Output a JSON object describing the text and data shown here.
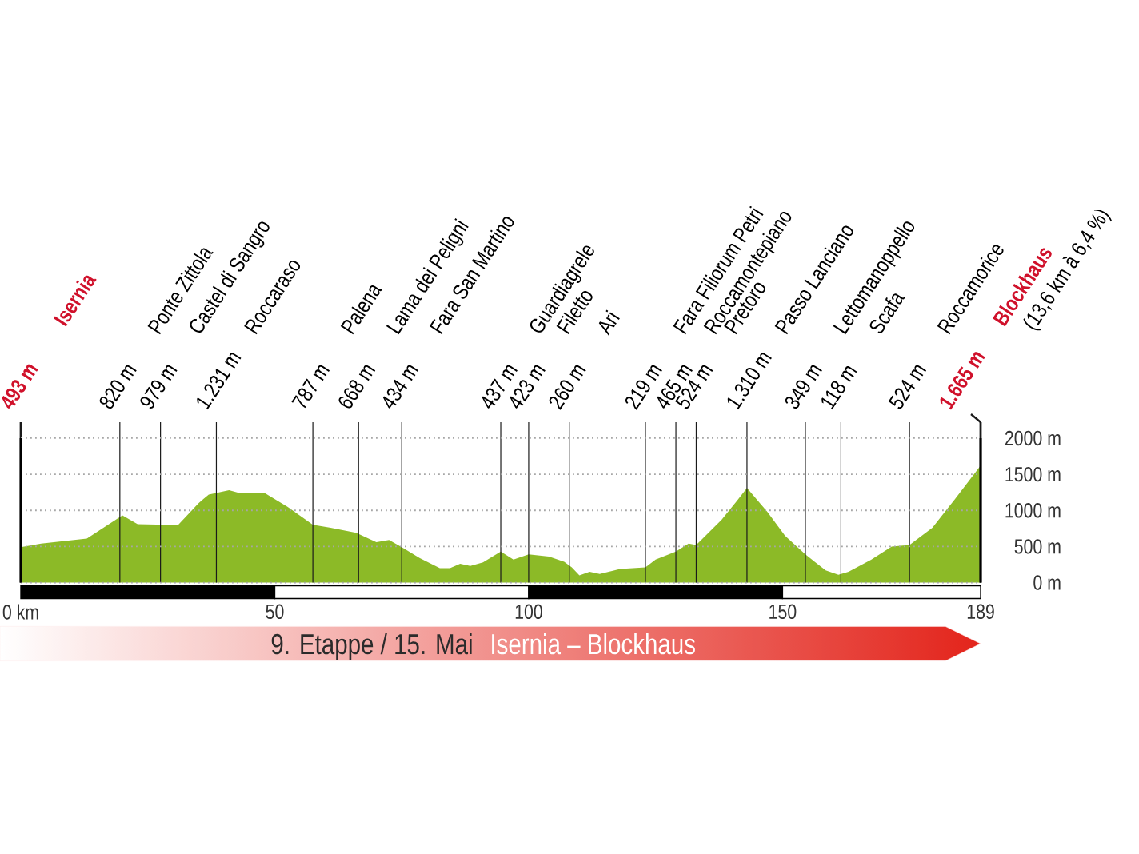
{
  "chart_data": {
    "type": "area",
    "title": "9. Etappe / 15. Mai",
    "subtitle": "Isernia – Blockhaus",
    "color": "#8cba27",
    "x": [
      0,
      4,
      13,
      20,
      23,
      28.5,
      31,
      35,
      37,
      41,
      43,
      48,
      52.5,
      57.5,
      61,
      66,
      70,
      72.5,
      75,
      78.5,
      82.5,
      84.5,
      86.5,
      88.5,
      91,
      94.5,
      97,
      100,
      104,
      107,
      108.5,
      110,
      112,
      114,
      118,
      123,
      125,
      129,
      131.5,
      133,
      138,
      141,
      143,
      147,
      150.5,
      154.5,
      158.5,
      161,
      163,
      167.5,
      171.5,
      175,
      179.5,
      184,
      189
    ],
    "values": [
      490,
      540,
      610,
      930,
      810,
      800,
      800,
      1100,
      1220,
      1280,
      1240,
      1240,
      1050,
      800,
      760,
      690,
      560,
      590,
      490,
      340,
      200,
      200,
      260,
      230,
      280,
      430,
      320,
      390,
      360,
      290,
      210,
      100,
      150,
      120,
      190,
      210,
      320,
      430,
      540,
      520,
      870,
      1130,
      1310,
      980,
      650,
      390,
      170,
      110,
      150,
      320,
      500,
      520,
      760,
      1160,
      1620
    ],
    "xlim": [
      0,
      189
    ],
    "xticks": [
      {
        "value": 0,
        "label": "0 km"
      },
      50,
      100,
      150,
      189
    ],
    "ylim": [
      0,
      2000
    ],
    "yticks": [
      {
        "value": 0,
        "label": "0 m"
      },
      {
        "value": 500,
        "label": "500 m"
      },
      {
        "value": 1000,
        "label": "1000 m"
      },
      {
        "value": 1500,
        "label": "1500 m"
      },
      {
        "value": 2000,
        "label": "2000 m"
      }
    ],
    "grid": "y",
    "ref_lines": [
      {
        "axis": "x",
        "value": 0,
        "label": "493 m"
      },
      {
        "axis": "x",
        "value": 19.5,
        "label": "820 m"
      },
      {
        "axis": "x",
        "value": 27.5,
        "label": "979 m"
      },
      {
        "axis": "x",
        "value": 38.5,
        "label": "1.231 m"
      },
      {
        "axis": "x",
        "value": 57.5,
        "label": "787 m"
      },
      {
        "axis": "x",
        "value": 66.5,
        "label": "668 m"
      },
      {
        "axis": "x",
        "value": 75,
        "label": "434 m"
      },
      {
        "axis": "x",
        "value": 94.5,
        "label": "437 m"
      },
      {
        "axis": "x",
        "value": 100,
        "label": "423 m"
      },
      {
        "axis": "x",
        "value": 108,
        "label": "260 m"
      },
      {
        "axis": "x",
        "value": 123,
        "label": "219 m"
      },
      {
        "axis": "x",
        "value": 129,
        "label": "465 m"
      },
      {
        "axis": "x",
        "value": 133,
        "label": "524 m"
      },
      {
        "axis": "x",
        "value": 143,
        "label": "1.310 m"
      },
      {
        "axis": "x",
        "value": 154.5,
        "label": "349 m"
      },
      {
        "axis": "x",
        "value": 161.5,
        "label": "118 m"
      },
      {
        "axis": "x",
        "value": 175,
        "label": "524 m"
      },
      {
        "axis": "x",
        "value": 189,
        "label": "1.665 m"
      }
    ],
    "annotations": [
      "Isernia",
      "Ponte Zittola",
      "Castel di Sangro",
      "Roccaraso",
      "Palena",
      "Lama dei Peligni",
      "Fara San Martino",
      "Guardiagrele",
      "Filetto",
      "Ari",
      "Fara Filiorum Petri",
      "Roccamontepiano",
      "Pretoro",
      "Passo Lanciano",
      "Lettomanoppello",
      "Scafa",
      "Roccamorice",
      "Blockhaus",
      "(13,6 km à 6,4 %)"
    ]
  }
}
